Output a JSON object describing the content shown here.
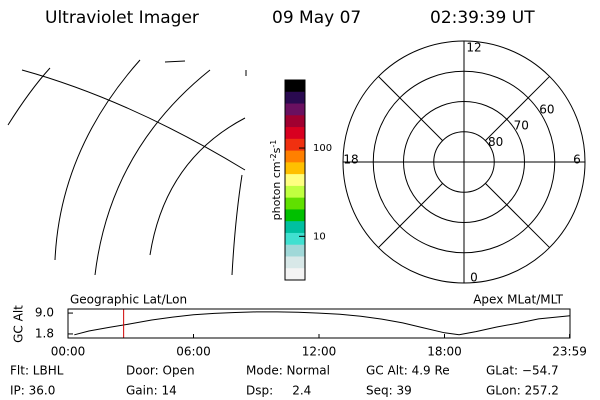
{
  "header": {
    "title": "Ultraviolet Imager",
    "date": "09 May 07",
    "time": "02:39:39 UT"
  },
  "colorbar": {
    "label_parts": [
      "photon cm",
      "-2",
      "s",
      "-1"
    ],
    "log": true,
    "lim": [
      3.2,
      590
    ],
    "ticks": [
      10,
      100
    ],
    "colors": [
      "#000000",
      "#2a0a50",
      "#6a1060",
      "#a00030",
      "#d80020",
      "#f03010",
      "#ff8000",
      "#ffc000",
      "#ffff80",
      "#c0ff40",
      "#60e000",
      "#00c000",
      "#00c0a0",
      "#40e0d0",
      "#a0d8d8",
      "#d8e8e8",
      "#f4f4f4"
    ]
  },
  "polar": {
    "lat_lim": [
      90,
      50
    ],
    "lat_ticks": [
      80,
      70,
      60
    ],
    "mlt_ticks": [
      12,
      18,
      6,
      0
    ]
  },
  "timeline": {
    "ylabel": "GC Alt",
    "left_label": "Geographic Lat/Lon",
    "right_label": "Apex MLat/MLT",
    "xlim": [
      0,
      24
    ],
    "ylim": [
      0.4,
      10.4
    ],
    "xticks": [
      {
        "value": 0,
        "label": "00:00"
      },
      {
        "value": 6,
        "label": "06:00"
      },
      {
        "value": 12,
        "label": "12:00"
      },
      {
        "value": 18,
        "label": "18:00"
      },
      {
        "value": 23.98,
        "label": "23:59"
      }
    ],
    "yticks": [
      {
        "value": 9.0,
        "label": "9.0"
      },
      1.8
    ],
    "x": [
      0.3,
      1,
      2,
      3,
      4,
      5,
      6,
      7,
      8,
      9,
      10,
      11,
      12,
      13,
      14,
      15,
      16,
      17,
      18,
      18.7,
      19.5,
      20.5,
      21.5,
      22.5,
      24
    ],
    "values": [
      1.5,
      2.8,
      4.1,
      5.3,
      6.6,
      7.6,
      8.4,
      8.9,
      9.2,
      9.4,
      9.4,
      9.3,
      9.0,
      8.6,
      7.9,
      6.9,
      5.6,
      3.9,
      2.2,
      1.5,
      2.6,
      4.2,
      5.5,
      7.0,
      8.1
    ],
    "marker": 2.66,
    "marker_color": "#d00000"
  },
  "footer": {
    "rows": [
      [
        "Flt: LBHL",
        "Door: Open",
        "Mode: Normal",
        "GC Alt: 4.9 Re",
        "GLat: −54.7"
      ],
      [
        "IP: 36.0",
        "Gain: 14",
        "Dsp:     2.4",
        "Seq: 39",
        "GLon: 257.2"
      ]
    ]
  }
}
